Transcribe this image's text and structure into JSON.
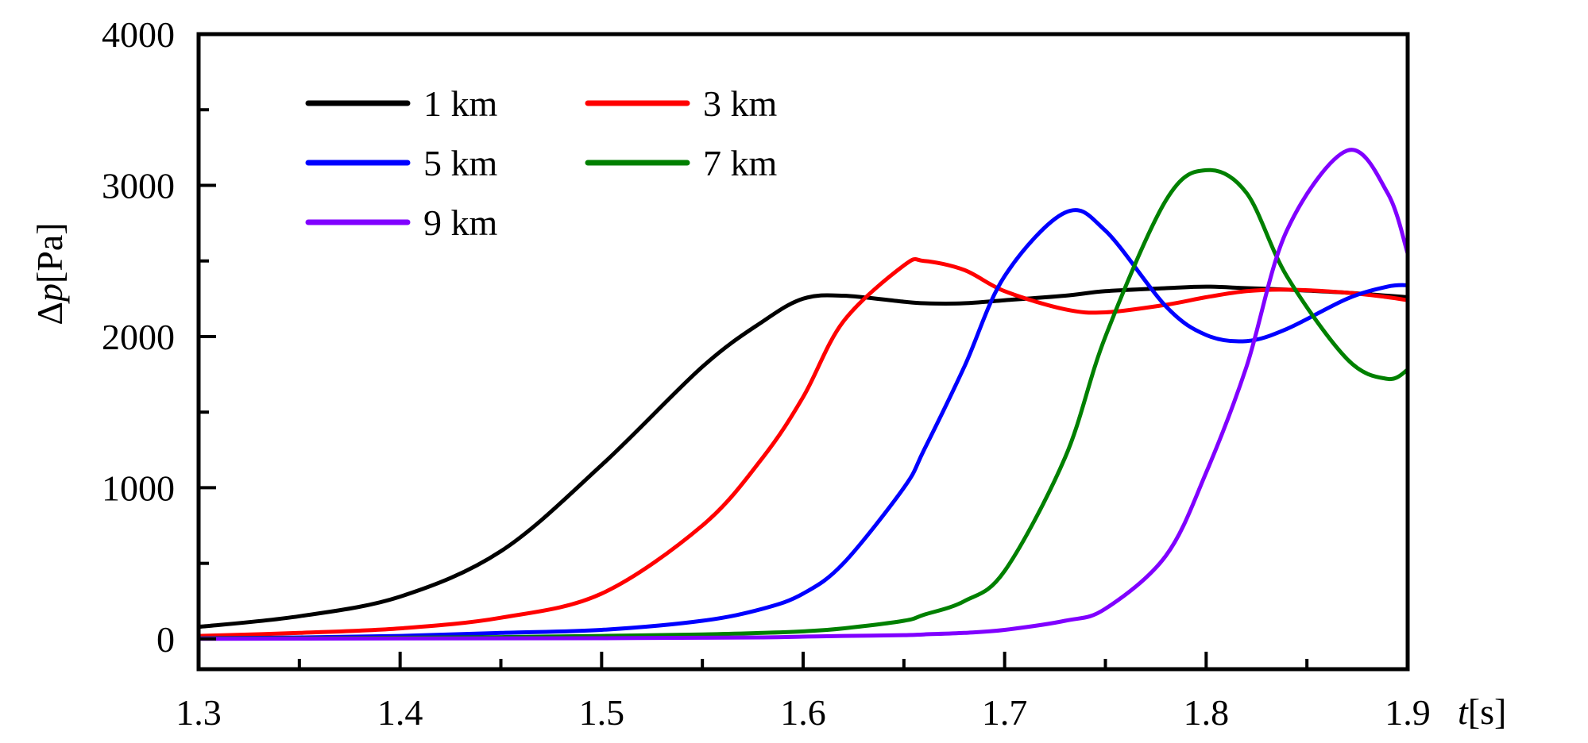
{
  "chart_data": {
    "type": "line",
    "title": "",
    "xlabel": {
      "var": "t",
      "unit": "[s]"
    },
    "ylabel": {
      "var": "p",
      "prefix": "Δ",
      "unit": "[Pa]"
    },
    "xlim": [
      1.3,
      1.9
    ],
    "ylim": [
      -200,
      4000
    ],
    "xticks": [
      1.3,
      1.4,
      1.5,
      1.6,
      1.7,
      1.8,
      1.9
    ],
    "xtick_labels": [
      "1.3",
      "1.4",
      "1.5",
      "1.6",
      "1.7",
      "1.8",
      "1.9"
    ],
    "yticks": [
      0,
      1000,
      2000,
      3000,
      4000
    ],
    "ytick_labels": [
      "0",
      "1000",
      "2000",
      "3000",
      "4000"
    ],
    "grid": false,
    "legend_position": "top-left",
    "x": [
      1.3,
      1.35,
      1.4,
      1.45,
      1.5,
      1.55,
      1.58,
      1.6,
      1.62,
      1.65,
      1.66,
      1.68,
      1.7,
      1.73,
      1.75,
      1.78,
      1.8,
      1.82,
      1.84,
      1.87,
      1.89,
      1.9
    ],
    "series": [
      {
        "name": "1 km",
        "color": "#000000",
        "values": [
          80,
          150,
          280,
          580,
          1150,
          1800,
          2100,
          2250,
          2270,
          2230,
          2220,
          2220,
          2240,
          2270,
          2300,
          2320,
          2330,
          2320,
          2310,
          2290,
          2270,
          2260
        ]
      },
      {
        "name": "3 km",
        "color": "#ff0000",
        "values": [
          20,
          40,
          70,
          140,
          300,
          750,
          1200,
          1600,
          2100,
          2470,
          2500,
          2440,
          2300,
          2180,
          2160,
          2210,
          2260,
          2300,
          2310,
          2290,
          2260,
          2240
        ]
      },
      {
        "name": "5 km",
        "color": "#0000ff",
        "values": [
          5,
          10,
          20,
          40,
          60,
          120,
          200,
          300,
          500,
          1000,
          1250,
          1800,
          2400,
          2820,
          2700,
          2200,
          2010,
          1970,
          2050,
          2250,
          2330,
          2340
        ]
      },
      {
        "name": "7 km",
        "color": "#008000",
        "values": [
          3,
          5,
          8,
          12,
          20,
          30,
          40,
          50,
          70,
          120,
          160,
          250,
          450,
          1200,
          2000,
          2900,
          3100,
          2950,
          2400,
          1850,
          1720,
          1780
        ]
      },
      {
        "name": "9 km",
        "color": "#8000ff",
        "values": [
          1,
          2,
          3,
          4,
          5,
          8,
          10,
          15,
          20,
          25,
          30,
          40,
          60,
          120,
          200,
          550,
          1100,
          1800,
          2700,
          3230,
          2950,
          2550
        ]
      }
    ]
  }
}
